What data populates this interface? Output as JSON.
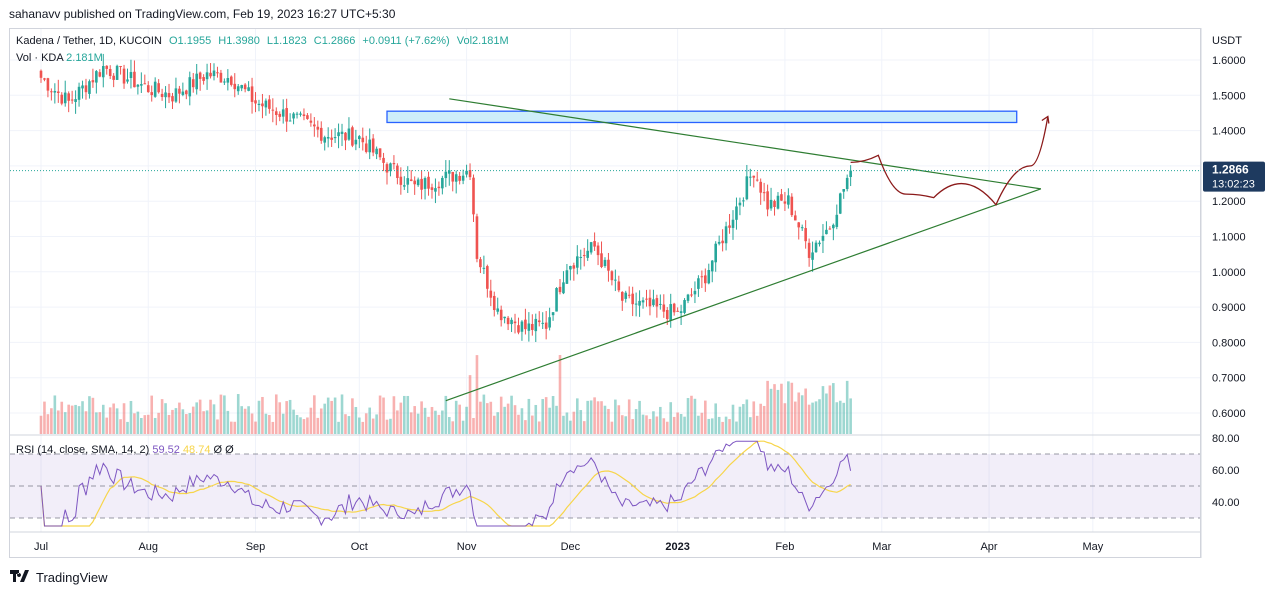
{
  "caption": "sahanavv published on TradingView.com, Feb 19, 2023 16:27 UTC+5:30",
  "legend": {
    "symbol": "Kadena / Tether, 1D, KUCOIN",
    "open": "O1.1955",
    "high": "H1.3980",
    "low": "L1.1823",
    "close": "C1.2866",
    "change": "+0.0911 (+7.62%)",
    "volume": "Vol2.181M"
  },
  "vol_legend": {
    "label": "Vol · KDA",
    "value": "2.181M"
  },
  "rsi_legend": {
    "label": "RSI (14, close, SMA, 14, 2)",
    "rsi": "59.52",
    "sma": "48.74",
    "extra": "Ø Ø"
  },
  "price_axis": {
    "unit": "USDT",
    "current_price": "1.2866",
    "countdown": "13:02:23"
  },
  "footer": {
    "brand": "TradingView",
    "logo": "tradingview-logo"
  },
  "colors": {
    "up": "#26a69a",
    "down": "#ef5350",
    "trend": "#2e7d32",
    "zone_fill": "#cdeefa",
    "zone_border": "#2962ff",
    "projection": "#8b1a1a",
    "rsi": "#7e57c2",
    "rsi_sma": "#f7d54a",
    "price_label_bg": "#1e3a5f"
  },
  "chart_data": {
    "type": "candlestick",
    "price_ticks": [
      1.6,
      1.5,
      1.4,
      1.3,
      1.2,
      1.1,
      1.0,
      0.9,
      0.8,
      0.7,
      0.6
    ],
    "price_tick_labels": [
      "1.6000",
      "1.5000",
      "1.4000",
      "1.3000",
      "1.2000",
      "1.1000",
      "1.0000",
      "0.9000",
      "0.8000",
      "0.7000",
      "0.6000"
    ],
    "rsi_ticks": [
      80,
      60,
      40
    ],
    "rsi_tick_labels": [
      "80.00",
      "60.00",
      "40.00"
    ],
    "rsi_bands": [
      70,
      50,
      30
    ],
    "time_labels": [
      "Jul",
      "Aug",
      "Sep",
      "Oct",
      "Nov",
      "Dec",
      "2023",
      "Feb",
      "Mar",
      "Apr",
      "May"
    ],
    "time_label_days": [
      0,
      31,
      62,
      92,
      123,
      153,
      184,
      215,
      243,
      274,
      304
    ],
    "last_price": 1.2866,
    "resistance_zone": {
      "top": 1.455,
      "bottom": 1.423,
      "from_day": 100,
      "to_day": 282
    },
    "upper_trendline": [
      [
        118,
        1.49
      ],
      [
        289,
        1.235
      ]
    ],
    "lower_trendline": [
      [
        117,
        0.635
      ],
      [
        289,
        1.235
      ]
    ],
    "projection_path": [
      [
        234,
        1.31
      ],
      [
        242,
        1.33
      ],
      [
        250,
        1.22
      ],
      [
        258,
        1.21
      ],
      [
        266,
        1.25
      ],
      [
        276,
        1.19
      ],
      [
        286,
        1.3
      ],
      [
        291,
        1.44
      ]
    ],
    "anchor_candles": [
      [
        0,
        1.55
      ],
      [
        8,
        1.48
      ],
      [
        18,
        1.58
      ],
      [
        31,
        1.52
      ],
      [
        38,
        1.5
      ],
      [
        48,
        1.56
      ],
      [
        55,
        1.55
      ],
      [
        62,
        1.48
      ],
      [
        72,
        1.44
      ],
      [
        82,
        1.39
      ],
      [
        92,
        1.38
      ],
      [
        100,
        1.3
      ],
      [
        108,
        1.24
      ],
      [
        118,
        1.27
      ],
      [
        124,
        1.29
      ],
      [
        126,
        1.05
      ],
      [
        132,
        0.89
      ],
      [
        140,
        0.84
      ],
      [
        146,
        0.85
      ],
      [
        152,
        1.02
      ],
      [
        160,
        1.07
      ],
      [
        168,
        0.92
      ],
      [
        176,
        0.9
      ],
      [
        184,
        0.88
      ],
      [
        192,
        0.99
      ],
      [
        198,
        1.12
      ],
      [
        206,
        1.29
      ],
      [
        210,
        1.19
      ],
      [
        216,
        1.2
      ],
      [
        222,
        1.06
      ],
      [
        228,
        1.13
      ],
      [
        234,
        1.29
      ]
    ],
    "volume_peak_M": 2.181
  }
}
